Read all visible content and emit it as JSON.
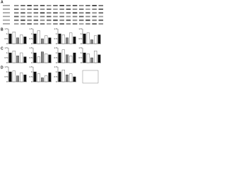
{
  "panel_labels": [
    "A",
    "B",
    "C",
    "D"
  ],
  "chart_data": [
    {
      "type": "bar",
      "values": [
        1,
        1.2,
        0.6,
        0.9,
        0.7
      ],
      "colors": [
        "#111",
        "#fff",
        "#888",
        "#fff",
        "#111"
      ],
      "ylim": [
        0,
        1.5
      ],
      "yticks": [
        0,
        0.5,
        1,
        1.5
      ]
    },
    {
      "type": "bar",
      "values": [
        1,
        1.3,
        0.5,
        0.8,
        0.6
      ],
      "colors": [
        "#111",
        "#fff",
        "#888",
        "#fff",
        "#111"
      ],
      "ylim": [
        0,
        1.5
      ],
      "yticks": [
        0,
        0.5,
        1,
        1.5
      ]
    },
    {
      "type": "bar",
      "values": [
        1,
        0.9,
        0.6,
        1.1,
        0.7
      ],
      "colors": [
        "#111",
        "#fff",
        "#888",
        "#fff",
        "#111"
      ],
      "ylim": [
        0,
        1.5
      ],
      "yticks": [
        0,
        0.5,
        1,
        1.5
      ]
    },
    {
      "type": "bar",
      "values": [
        1,
        1.1,
        0.4,
        0.8,
        0.9
      ],
      "colors": [
        "#111",
        "#fff",
        "#888",
        "#fff",
        "#111"
      ],
      "ylim": [
        0,
        1.5
      ],
      "yticks": [
        0,
        0.5,
        1,
        1.5
      ]
    },
    {
      "type": "bar",
      "values": [
        1,
        1.2,
        0.7,
        1,
        0.6
      ],
      "colors": [
        "#111",
        "#fff",
        "#888",
        "#fff",
        "#111"
      ],
      "ylim": [
        0,
        1.5
      ],
      "yticks": [
        0,
        0.5,
        1,
        1.5
      ]
    },
    {
      "type": "bar",
      "values": [
        1,
        0.6,
        1.1,
        0.9,
        0.8
      ],
      "colors": [
        "#111",
        "#fff",
        "#888",
        "#fff",
        "#111"
      ],
      "ylim": [
        0,
        1.5
      ],
      "yticks": [
        0,
        0.5,
        1,
        1.5
      ]
    },
    {
      "type": "bar",
      "values": [
        1,
        1.3,
        0.8,
        0.7,
        1
      ],
      "colors": [
        "#111",
        "#fff",
        "#888",
        "#fff",
        "#111"
      ],
      "ylim": [
        0,
        1.5
      ],
      "yticks": [
        0,
        0.5,
        1,
        1.5
      ]
    },
    {
      "type": "bar",
      "values": [
        1,
        0.9,
        0.5,
        1.2,
        0.8
      ],
      "colors": [
        "#111",
        "#fff",
        "#888",
        "#fff",
        "#111"
      ],
      "ylim": [
        0,
        1.5
      ],
      "yticks": [
        0,
        0.5,
        1,
        1.5
      ]
    },
    {
      "type": "bar",
      "values": [
        1,
        1.1,
        0.6,
        0.9,
        0.7
      ],
      "colors": [
        "#111",
        "#fff",
        "#888",
        "#fff",
        "#111"
      ],
      "ylim": [
        0,
        1.5
      ],
      "yticks": [
        0,
        0.5,
        1,
        1.5
      ]
    },
    {
      "type": "bar",
      "values": [
        1,
        0.8,
        0.4,
        0.6,
        0.9
      ],
      "colors": [
        "#111",
        "#fff",
        "#888",
        "#fff",
        "#111"
      ],
      "ylim": [
        0,
        1.5
      ],
      "yticks": [
        0,
        0.5,
        1,
        1.5
      ]
    },
    {
      "type": "bar",
      "values": [
        1,
        1.2,
        0.7,
        0.8,
        0.5
      ],
      "colors": [
        "#111",
        "#fff",
        "#888",
        "#fff",
        "#111"
      ],
      "ylim": [
        0,
        1.5
      ],
      "yticks": [
        0,
        0.5,
        1,
        1.5
      ]
    }
  ]
}
